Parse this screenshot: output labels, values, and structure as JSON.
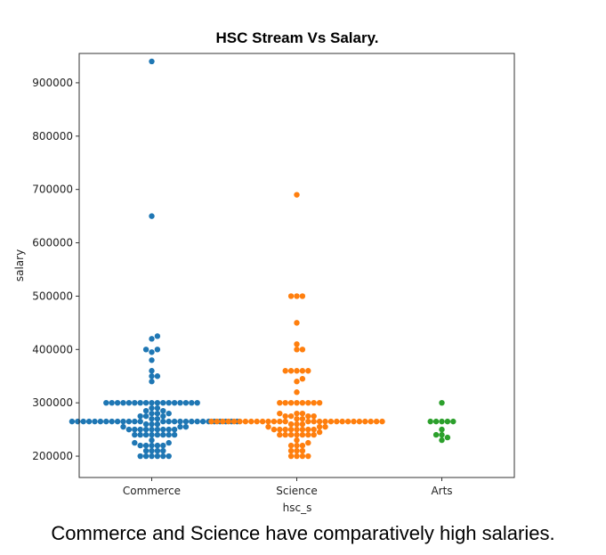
{
  "chart_data": {
    "type": "scatter",
    "subtype": "swarm",
    "title": "HSC Stream Vs Salary.",
    "xlabel": "hsc_s",
    "ylabel": "salary",
    "categories": [
      "Commerce",
      "Science",
      "Arts"
    ],
    "ylim": [
      160000,
      955000
    ],
    "yticks": [
      200000,
      300000,
      400000,
      500000,
      600000,
      700000,
      800000,
      900000
    ],
    "grid": false,
    "series": [
      {
        "category": "Commerce",
        "color": "#1f77b4",
        "values": [
          940000,
          650000,
          425000,
          420000,
          400000,
          400000,
          395000,
          380000,
          360000,
          350000,
          350000,
          340000,
          300000,
          300000,
          300000,
          300000,
          300000,
          300000,
          300000,
          300000,
          300000,
          300000,
          300000,
          300000,
          300000,
          300000,
          300000,
          300000,
          300000,
          290000,
          290000,
          285000,
          285000,
          280000,
          280000,
          280000,
          275000,
          275000,
          275000,
          270000,
          270000,
          265000,
          265000,
          265000,
          265000,
          265000,
          265000,
          265000,
          265000,
          265000,
          265000,
          265000,
          265000,
          265000,
          265000,
          265000,
          265000,
          265000,
          265000,
          265000,
          265000,
          265000,
          265000,
          265000,
          265000,
          265000,
          265000,
          265000,
          260000,
          260000,
          260000,
          255000,
          255000,
          255000,
          250000,
          250000,
          250000,
          250000,
          250000,
          250000,
          250000,
          250000,
          250000,
          240000,
          240000,
          240000,
          240000,
          240000,
          240000,
          240000,
          240000,
          230000,
          225000,
          225000,
          220000,
          220000,
          220000,
          220000,
          220000,
          210000,
          210000,
          210000,
          210000,
          200000,
          200000,
          200000,
          200000,
          200000,
          200000
        ]
      },
      {
        "category": "Science",
        "color": "#ff7f0e",
        "values": [
          690000,
          500000,
          500000,
          500000,
          450000,
          410000,
          400000,
          400000,
          360000,
          360000,
          360000,
          360000,
          360000,
          345000,
          340000,
          320000,
          300000,
          300000,
          300000,
          300000,
          300000,
          300000,
          300000,
          300000,
          280000,
          280000,
          280000,
          275000,
          275000,
          275000,
          275000,
          270000,
          270000,
          265000,
          265000,
          265000,
          265000,
          265000,
          265000,
          265000,
          265000,
          265000,
          265000,
          265000,
          265000,
          265000,
          265000,
          265000,
          265000,
          265000,
          265000,
          265000,
          265000,
          265000,
          265000,
          265000,
          265000,
          265000,
          265000,
          265000,
          265000,
          260000,
          260000,
          260000,
          255000,
          255000,
          255000,
          250000,
          250000,
          250000,
          250000,
          250000,
          250000,
          250000,
          250000,
          245000,
          240000,
          240000,
          240000,
          240000,
          240000,
          240000,
          240000,
          230000,
          225000,
          220000,
          220000,
          220000,
          210000,
          210000,
          210000,
          200000,
          200000,
          200000,
          200000
        ]
      },
      {
        "category": "Arts",
        "color": "#2ca02c",
        "values": [
          300000,
          265000,
          265000,
          265000,
          265000,
          265000,
          250000,
          240000,
          240000,
          235000,
          230000
        ]
      }
    ]
  },
  "caption": "Commerce and Science have comparatively high salaries."
}
